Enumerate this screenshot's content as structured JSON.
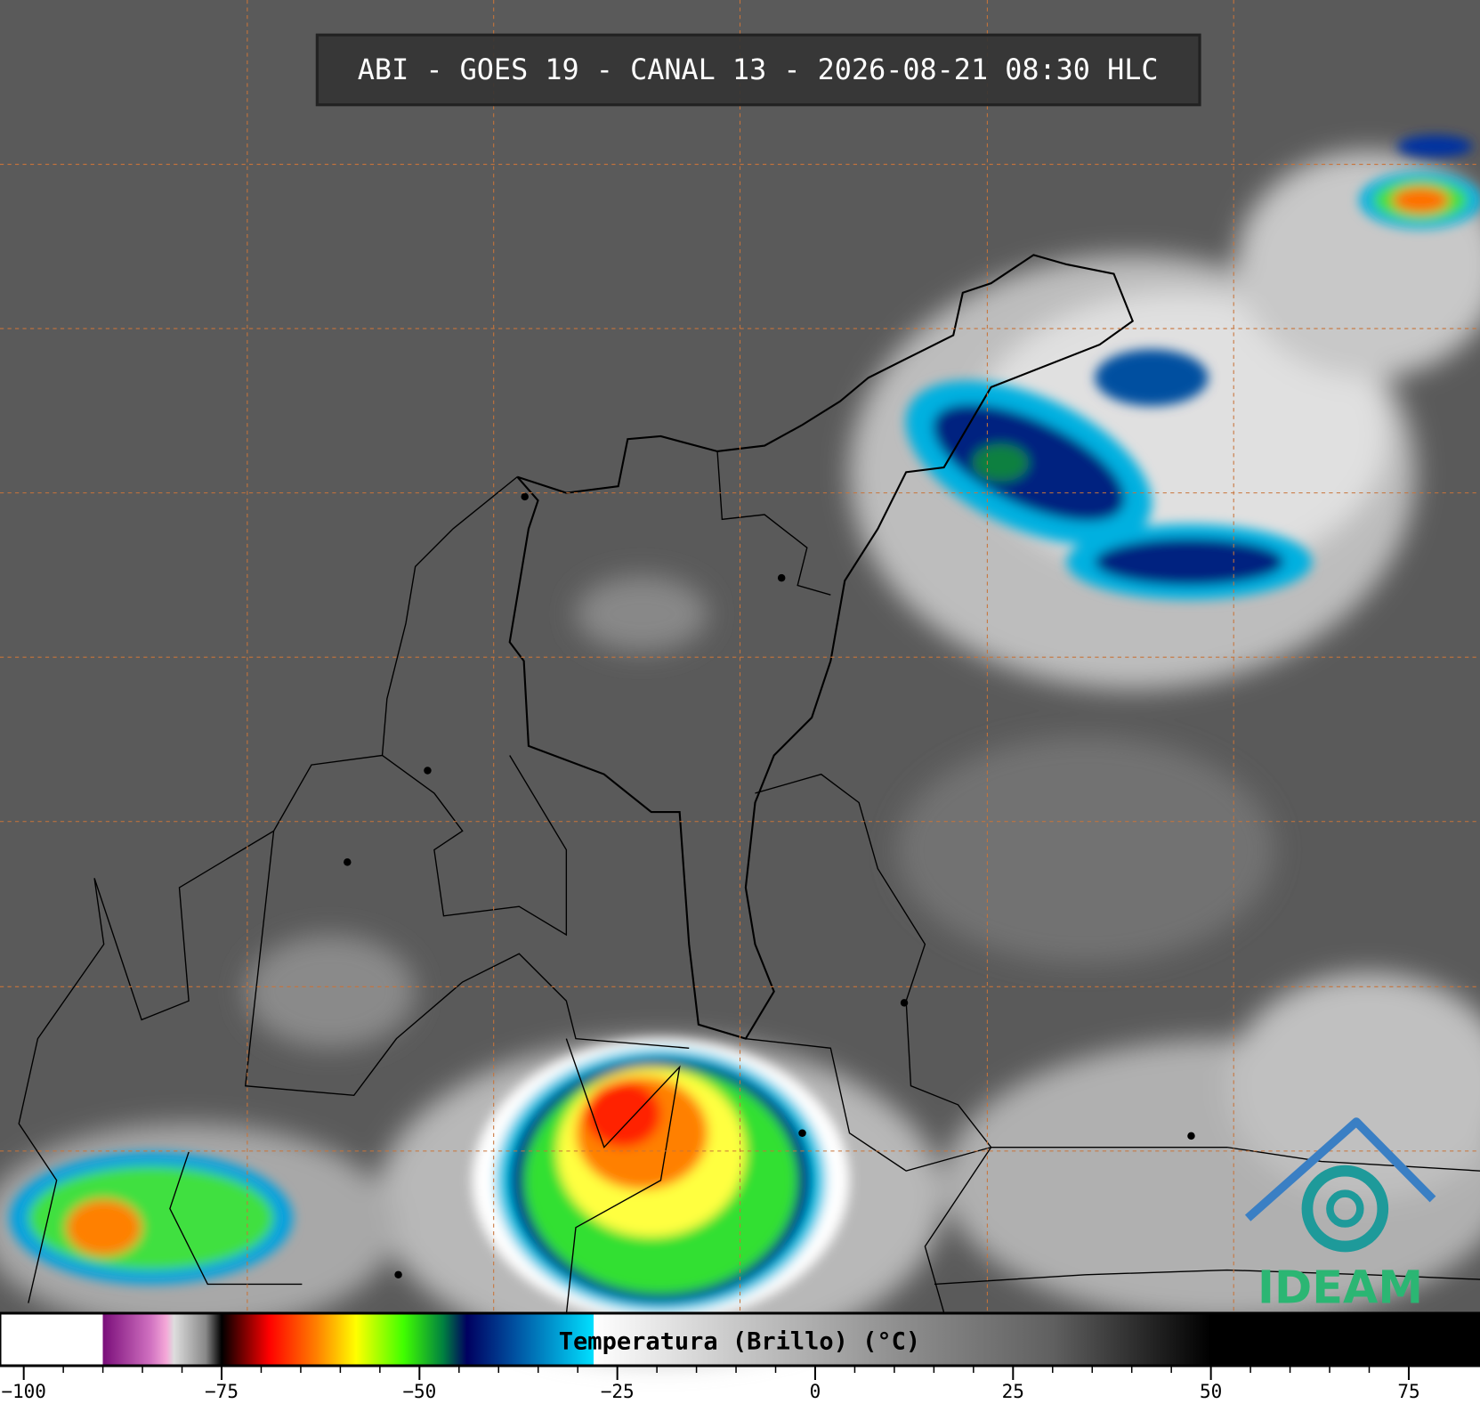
{
  "header": {
    "title": "ABI - GOES 19 - CANAL 13 - 2026-08-21 08:30 HLC"
  },
  "colorbar": {
    "label": "Temperatura (Brillo) (°C)",
    "range": [
      -103,
      84
    ],
    "ticks": [
      {
        "value": -100,
        "label": "−100"
      },
      {
        "value": -75,
        "label": "−75"
      },
      {
        "value": -50,
        "label": "−50"
      },
      {
        "value": -25,
        "label": "−25"
      },
      0,
      25,
      50,
      75
    ],
    "colormap": [
      [
        -103,
        "#ffffff"
      ],
      [
        -90,
        "#ffffff"
      ],
      [
        -90,
        "#7a0e7a"
      ],
      [
        -84,
        "#d070c0"
      ],
      [
        -82,
        "#f4a8d8"
      ],
      [
        -81,
        "#dddddd"
      ],
      [
        -77,
        "#888888"
      ],
      [
        -75,
        "#000000"
      ],
      [
        -72,
        "#800000"
      ],
      [
        -69,
        "#ff0000"
      ],
      [
        -63,
        "#ff8000"
      ],
      [
        -58,
        "#ffff00"
      ],
      [
        -52,
        "#40ff00"
      ],
      [
        -47,
        "#008040"
      ],
      [
        -44,
        "#000060"
      ],
      [
        -38,
        "#0050a0"
      ],
      [
        -28,
        "#00e0ff"
      ],
      [
        -28,
        "#ffffff"
      ],
      [
        -10,
        "#c8c8c8"
      ],
      [
        10,
        "#909090"
      ],
      [
        30,
        "#606060"
      ],
      [
        50,
        "#000000"
      ],
      [
        84,
        "#000000"
      ]
    ]
  },
  "logo": {
    "text": "IDEAM"
  }
}
